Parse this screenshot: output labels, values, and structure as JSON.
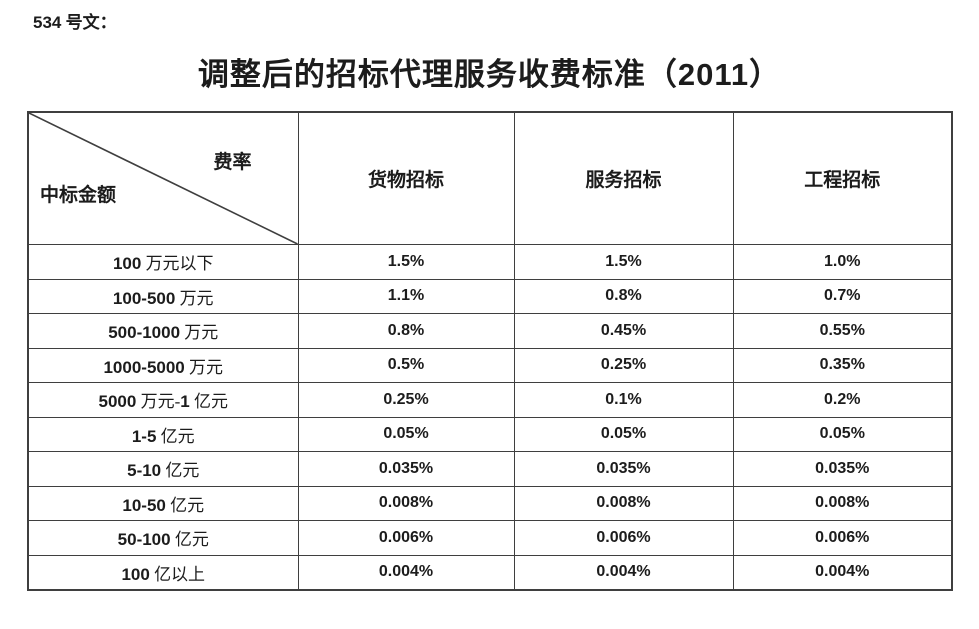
{
  "doc_label": "534 号文：",
  "title": "调整后的招标代理服务收费标准（2011）",
  "table": {
    "corner_top_right": "费率",
    "corner_bottom_left": "中标金额",
    "columns": [
      "货物招标",
      "服务招标",
      "工程招标"
    ],
    "rows": [
      {
        "label": "100 万元以下",
        "values": [
          "1.5%",
          "1.5%",
          "1.0%"
        ]
      },
      {
        "label": "100-500 万元",
        "values": [
          "1.1%",
          "0.8%",
          "0.7%"
        ]
      },
      {
        "label": "500-1000 万元",
        "values": [
          "0.8%",
          "0.45%",
          "0.55%"
        ]
      },
      {
        "label": "1000-5000 万元",
        "values": [
          "0.5%",
          "0.25%",
          "0.35%"
        ]
      },
      {
        "label": "5000 万元-1 亿元",
        "values": [
          "0.25%",
          "0.1%",
          "0.2%"
        ]
      },
      {
        "label": "1-5 亿元",
        "values": [
          "0.05%",
          "0.05%",
          "0.05%"
        ]
      },
      {
        "label": "5-10 亿元",
        "values": [
          "0.035%",
          "0.035%",
          "0.035%"
        ]
      },
      {
        "label": "10-50 亿元",
        "values": [
          "0.008%",
          "0.008%",
          "0.008%"
        ]
      },
      {
        "label": "50-100 亿元",
        "values": [
          "0.006%",
          "0.006%",
          "0.006%"
        ]
      },
      {
        "label": "100 亿以上",
        "values": [
          "0.004%",
          "0.004%",
          "0.004%"
        ]
      }
    ]
  },
  "colors": {
    "border": "#3f3f3f",
    "text": "#1c1c1c"
  }
}
